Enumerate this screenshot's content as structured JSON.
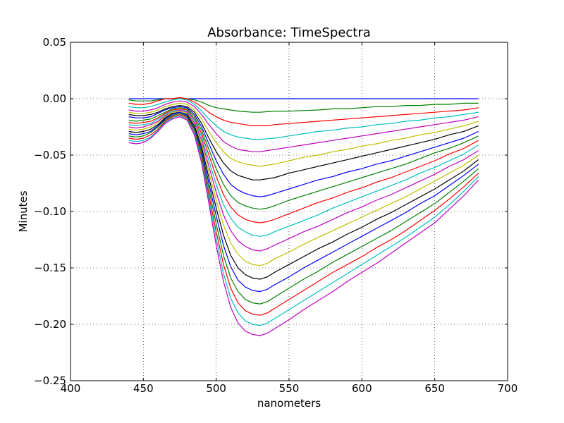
{
  "chart_data": {
    "type": "line",
    "title": "Absorbance: TimeSpectra",
    "xlabel": "nanometers",
    "ylabel": "Minutes",
    "xlim": [
      400,
      700
    ],
    "ylim": [
      -0.25,
      0.05
    ],
    "xticks": [
      "400",
      "450",
      "500",
      "550",
      "600",
      "650",
      "700"
    ],
    "yticks": [
      "0.05",
      "0.00",
      "−0.05",
      "−0.10",
      "−0.15",
      "−0.20",
      "−0.25"
    ],
    "grid": true,
    "x": [
      440,
      445,
      450,
      455,
      460,
      465,
      470,
      475,
      480,
      485,
      490,
      495,
      500,
      505,
      510,
      515,
      520,
      525,
      530,
      535,
      540,
      550,
      560,
      570,
      580,
      590,
      600,
      610,
      620,
      630,
      640,
      650,
      660,
      670,
      680
    ],
    "colors": [
      "#0000ff",
      "#008000",
      "#ff0000",
      "#00bfbf",
      "#bf00bf",
      "#bfbf00",
      "#000000"
    ],
    "series": [
      {
        "values": [
          0.0,
          0.0,
          0.0,
          0.0,
          0.0,
          0.0,
          0.0,
          0.0,
          0.0,
          0.0,
          0.0,
          0.0,
          0.0,
          0.0,
          0.0,
          0.0,
          0.0,
          0.0,
          0.0,
          0.0,
          0.0,
          0.0,
          0.0,
          0.0,
          0.0,
          0.0,
          0.0,
          0.0,
          0.0,
          0.0,
          0.0,
          0.0,
          0.0,
          0.0,
          0.0
        ]
      },
      {
        "values": [
          -0.001,
          -0.002,
          -0.002,
          -0.002,
          -0.001,
          0.0,
          0.0,
          0.0,
          0.0,
          -0.001,
          -0.003,
          -0.006,
          -0.008,
          -0.009,
          -0.01,
          -0.011,
          -0.0115,
          -0.012,
          -0.012,
          -0.0115,
          -0.011,
          -0.011,
          -0.0105,
          -0.01,
          -0.009,
          -0.009,
          -0.008,
          -0.007,
          -0.007,
          -0.006,
          -0.006,
          -0.005,
          -0.005,
          -0.004,
          -0.004
        ]
      },
      {
        "values": [
          -0.004,
          -0.005,
          -0.005,
          -0.004,
          -0.002,
          0.0,
          0.0,
          0.001,
          0.0,
          -0.003,
          -0.007,
          -0.012,
          -0.016,
          -0.019,
          -0.021,
          -0.022,
          -0.023,
          -0.024,
          -0.024,
          -0.024,
          -0.023,
          -0.022,
          -0.021,
          -0.02,
          -0.019,
          -0.018,
          -0.017,
          -0.016,
          -0.015,
          -0.014,
          -0.013,
          -0.012,
          -0.011,
          -0.01,
          -0.008
        ]
      },
      {
        "values": [
          -0.007,
          -0.008,
          -0.008,
          -0.007,
          -0.005,
          -0.003,
          -0.001,
          0.0,
          -0.001,
          -0.005,
          -0.011,
          -0.018,
          -0.024,
          -0.029,
          -0.032,
          -0.034,
          -0.035,
          -0.036,
          -0.036,
          -0.0355,
          -0.035,
          -0.033,
          -0.031,
          -0.029,
          -0.028,
          -0.026,
          -0.025,
          -0.023,
          -0.022,
          -0.02,
          -0.019,
          -0.017,
          -0.016,
          -0.014,
          -0.012
        ]
      },
      {
        "values": [
          -0.01,
          -0.011,
          -0.011,
          -0.01,
          -0.008,
          -0.005,
          -0.003,
          -0.002,
          -0.003,
          -0.007,
          -0.014,
          -0.023,
          -0.031,
          -0.038,
          -0.042,
          -0.045,
          -0.046,
          -0.047,
          -0.047,
          -0.046,
          -0.045,
          -0.043,
          -0.041,
          -0.039,
          -0.037,
          -0.035,
          -0.033,
          -0.031,
          -0.029,
          -0.027,
          -0.025,
          -0.023,
          -0.021,
          -0.019,
          -0.016
        ]
      },
      {
        "values": [
          -0.012,
          -0.013,
          -0.013,
          -0.012,
          -0.01,
          -0.007,
          -0.005,
          -0.004,
          -0.005,
          -0.01,
          -0.018,
          -0.029,
          -0.039,
          -0.047,
          -0.053,
          -0.056,
          -0.058,
          -0.059,
          -0.06,
          -0.059,
          -0.058,
          -0.055,
          -0.052,
          -0.05,
          -0.047,
          -0.045,
          -0.042,
          -0.04,
          -0.037,
          -0.035,
          -0.032,
          -0.03,
          -0.027,
          -0.024,
          -0.02
        ]
      },
      {
        "values": [
          -0.014,
          -0.015,
          -0.015,
          -0.014,
          -0.012,
          -0.009,
          -0.007,
          -0.006,
          -0.007,
          -0.012,
          -0.022,
          -0.035,
          -0.047,
          -0.057,
          -0.064,
          -0.068,
          -0.07,
          -0.072,
          -0.072,
          -0.071,
          -0.07,
          -0.066,
          -0.063,
          -0.06,
          -0.057,
          -0.054,
          -0.051,
          -0.048,
          -0.045,
          -0.042,
          -0.039,
          -0.036,
          -0.032,
          -0.029,
          -0.024
        ]
      },
      {
        "values": [
          -0.016,
          -0.017,
          -0.017,
          -0.016,
          -0.013,
          -0.01,
          -0.008,
          -0.007,
          -0.008,
          -0.014,
          -0.025,
          -0.04,
          -0.055,
          -0.067,
          -0.076,
          -0.081,
          -0.084,
          -0.086,
          -0.087,
          -0.086,
          -0.084,
          -0.08,
          -0.076,
          -0.072,
          -0.069,
          -0.065,
          -0.062,
          -0.058,
          -0.055,
          -0.051,
          -0.047,
          -0.043,
          -0.039,
          -0.035,
          -0.029
        ]
      },
      {
        "values": [
          -0.019,
          -0.02,
          -0.019,
          -0.018,
          -0.015,
          -0.012,
          -0.009,
          -0.008,
          -0.009,
          -0.016,
          -0.028,
          -0.045,
          -0.062,
          -0.076,
          -0.086,
          -0.092,
          -0.095,
          -0.097,
          -0.098,
          -0.097,
          -0.095,
          -0.09,
          -0.086,
          -0.082,
          -0.078,
          -0.074,
          -0.07,
          -0.066,
          -0.062,
          -0.058,
          -0.053,
          -0.048,
          -0.044,
          -0.039,
          -0.033
        ]
      },
      {
        "values": [
          -0.021,
          -0.022,
          -0.021,
          -0.02,
          -0.017,
          -0.013,
          -0.01,
          -0.009,
          -0.01,
          -0.018,
          -0.031,
          -0.05,
          -0.069,
          -0.085,
          -0.096,
          -0.103,
          -0.107,
          -0.109,
          -0.11,
          -0.109,
          -0.107,
          -0.102,
          -0.097,
          -0.092,
          -0.088,
          -0.083,
          -0.079,
          -0.074,
          -0.07,
          -0.065,
          -0.06,
          -0.055,
          -0.049,
          -0.044,
          -0.037
        ]
      },
      {
        "values": [
          -0.023,
          -0.024,
          -0.023,
          -0.022,
          -0.018,
          -0.014,
          -0.011,
          -0.01,
          -0.011,
          -0.019,
          -0.034,
          -0.055,
          -0.076,
          -0.094,
          -0.106,
          -0.114,
          -0.118,
          -0.121,
          -0.122,
          -0.121,
          -0.118,
          -0.113,
          -0.108,
          -0.103,
          -0.097,
          -0.092,
          -0.087,
          -0.082,
          -0.077,
          -0.072,
          -0.066,
          -0.061,
          -0.055,
          -0.049,
          -0.041
        ]
      },
      {
        "values": [
          -0.025,
          -0.026,
          -0.025,
          -0.023,
          -0.02,
          -0.015,
          -0.012,
          -0.01,
          -0.012,
          -0.021,
          -0.037,
          -0.06,
          -0.083,
          -0.103,
          -0.117,
          -0.126,
          -0.131,
          -0.134,
          -0.135,
          -0.133,
          -0.13,
          -0.124,
          -0.118,
          -0.113,
          -0.107,
          -0.101,
          -0.096,
          -0.09,
          -0.085,
          -0.079,
          -0.073,
          -0.067,
          -0.06,
          -0.054,
          -0.046
        ]
      },
      {
        "values": [
          -0.027,
          -0.028,
          -0.027,
          -0.025,
          -0.021,
          -0.016,
          -0.012,
          -0.011,
          -0.013,
          -0.023,
          -0.04,
          -0.065,
          -0.09,
          -0.112,
          -0.128,
          -0.138,
          -0.144,
          -0.147,
          -0.148,
          -0.146,
          -0.142,
          -0.136,
          -0.129,
          -0.123,
          -0.117,
          -0.111,
          -0.105,
          -0.099,
          -0.093,
          -0.087,
          -0.08,
          -0.073,
          -0.066,
          -0.059,
          -0.05
        ]
      },
      {
        "values": [
          -0.029,
          -0.03,
          -0.029,
          -0.027,
          -0.023,
          -0.017,
          -0.013,
          -0.012,
          -0.014,
          -0.024,
          -0.043,
          -0.07,
          -0.097,
          -0.121,
          -0.139,
          -0.15,
          -0.156,
          -0.159,
          -0.16,
          -0.158,
          -0.154,
          -0.147,
          -0.14,
          -0.133,
          -0.127,
          -0.12,
          -0.114,
          -0.107,
          -0.101,
          -0.094,
          -0.087,
          -0.08,
          -0.072,
          -0.064,
          -0.054
        ]
      },
      {
        "values": [
          -0.031,
          -0.032,
          -0.031,
          -0.029,
          -0.024,
          -0.018,
          -0.014,
          -0.012,
          -0.015,
          -0.026,
          -0.046,
          -0.075,
          -0.104,
          -0.13,
          -0.149,
          -0.161,
          -0.167,
          -0.17,
          -0.171,
          -0.169,
          -0.165,
          -0.158,
          -0.15,
          -0.143,
          -0.136,
          -0.129,
          -0.122,
          -0.115,
          -0.108,
          -0.101,
          -0.093,
          -0.086,
          -0.077,
          -0.068,
          -0.058
        ]
      },
      {
        "values": [
          -0.033,
          -0.034,
          -0.033,
          -0.03,
          -0.025,
          -0.019,
          -0.015,
          -0.013,
          -0.016,
          -0.027,
          -0.049,
          -0.08,
          -0.111,
          -0.139,
          -0.159,
          -0.171,
          -0.178,
          -0.181,
          -0.182,
          -0.18,
          -0.176,
          -0.168,
          -0.16,
          -0.153,
          -0.145,
          -0.138,
          -0.131,
          -0.124,
          -0.117,
          -0.109,
          -0.101,
          -0.093,
          -0.083,
          -0.073,
          -0.062
        ]
      },
      {
        "values": [
          -0.035,
          -0.036,
          -0.035,
          -0.032,
          -0.027,
          -0.02,
          -0.016,
          -0.014,
          -0.017,
          -0.029,
          -0.052,
          -0.085,
          -0.118,
          -0.147,
          -0.168,
          -0.181,
          -0.188,
          -0.191,
          -0.192,
          -0.19,
          -0.186,
          -0.178,
          -0.17,
          -0.162,
          -0.154,
          -0.147,
          -0.14,
          -0.132,
          -0.125,
          -0.117,
          -0.108,
          -0.099,
          -0.089,
          -0.078,
          -0.066
        ]
      },
      {
        "values": [
          -0.037,
          -0.038,
          -0.037,
          -0.034,
          -0.028,
          -0.021,
          -0.017,
          -0.015,
          -0.018,
          -0.03,
          -0.054,
          -0.089,
          -0.124,
          -0.155,
          -0.177,
          -0.19,
          -0.197,
          -0.2,
          -0.201,
          -0.199,
          -0.195,
          -0.187,
          -0.179,
          -0.171,
          -0.163,
          -0.155,
          -0.147,
          -0.139,
          -0.131,
          -0.123,
          -0.114,
          -0.105,
          -0.094,
          -0.082,
          -0.069
        ]
      },
      {
        "values": [
          -0.039,
          -0.04,
          -0.039,
          -0.035,
          -0.029,
          -0.022,
          -0.018,
          -0.016,
          -0.019,
          -0.032,
          -0.057,
          -0.093,
          -0.13,
          -0.162,
          -0.185,
          -0.199,
          -0.206,
          -0.209,
          -0.21,
          -0.208,
          -0.204,
          -0.196,
          -0.187,
          -0.179,
          -0.171,
          -0.162,
          -0.154,
          -0.146,
          -0.137,
          -0.128,
          -0.119,
          -0.11,
          -0.098,
          -0.086,
          -0.072
        ]
      }
    ]
  }
}
